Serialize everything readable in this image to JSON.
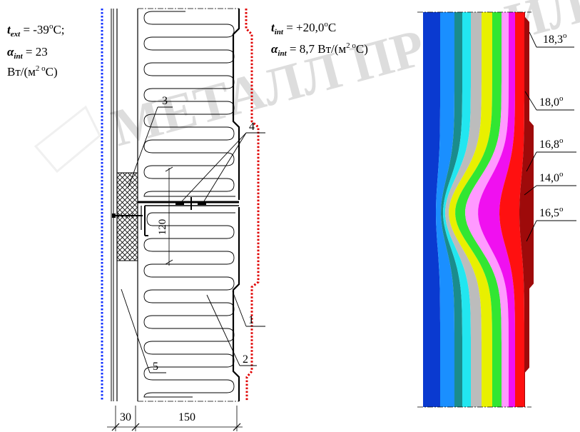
{
  "left_panel": {
    "ext_label": {
      "sym": "t",
      "sub": "ext",
      "value": " = -39",
      "sup": "o",
      "tail": "C;"
    },
    "alpha_ext": {
      "sym": "α",
      "sub": "int",
      "value": " = 23"
    },
    "alpha_ext_unit": {
      "main": "Вт/(м",
      "sup": "2 o",
      "tail": "С)"
    },
    "int_label": {
      "sym": "t",
      "sub": "int",
      "value": " = +20,0",
      "sup": "o",
      "tail": "C"
    },
    "alpha_int": {
      "sym": "α",
      "sub": "int",
      "value": " = 8,7 Вт/(м",
      "sup": "2 o",
      "tail": "С)"
    },
    "callouts": [
      "1",
      "2",
      "3",
      "4",
      "5"
    ],
    "dimension_120": "120",
    "dimension_30": "30",
    "dimension_150": "150"
  },
  "right_panel": {
    "temperature_labels": [
      {
        "main": "18,3",
        "sup": "o"
      },
      {
        "main": "18,0",
        "sup": "o"
      },
      {
        "main": "16,8",
        "sup": "o"
      },
      {
        "main": "14,0",
        "sup": "o"
      },
      {
        "main": "16,5",
        "sup": "o"
      }
    ],
    "color_bands": [
      "#0a1a80",
      "#0a3ad0",
      "#1a8fff",
      "#1a8c8c",
      "#22e6f0",
      "#bcbcbc",
      "#e8f000",
      "#32e632",
      "#ff99ff",
      "#f010f0",
      "#ff1010",
      "#9e0a0a"
    ]
  },
  "watermark": "МЕТАЛЛ ПРОФИЛЬ"
}
